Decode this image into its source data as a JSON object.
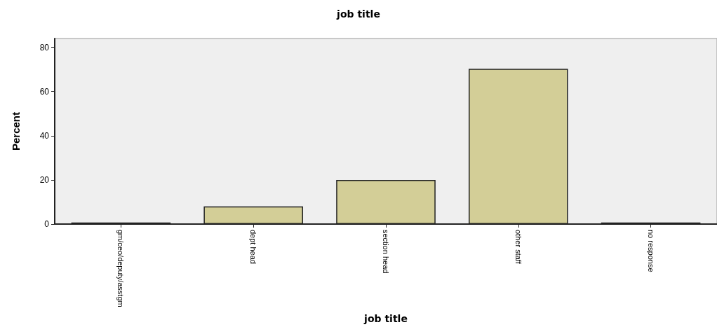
{
  "chart_data": {
    "type": "bar",
    "title": "job title",
    "xlabel": "job title",
    "ylabel": "Percent",
    "categories": [
      "gm/ceo/deputy/asstgm",
      "dept head",
      "section head",
      "other staff",
      "no response"
    ],
    "values": [
      0.7,
      8,
      20,
      70.3,
      0.7
    ],
    "color": "#d3ce97",
    "ylim": [
      0,
      84
    ],
    "yticks": [
      0,
      20,
      40,
      60,
      80
    ],
    "grid": false
  }
}
